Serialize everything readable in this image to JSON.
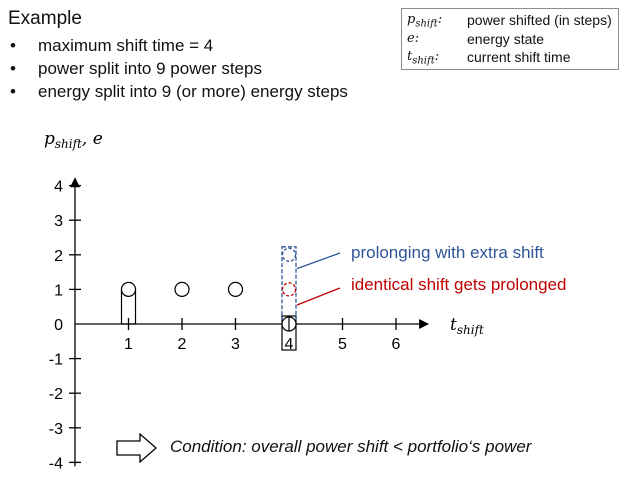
{
  "heading": "Example",
  "bullets": [
    "maximum shift time = 4",
    "power split into 9 power steps",
    "energy split into 9 (or more) energy steps"
  ],
  "legend": [
    {
      "symbol_main": "p",
      "symbol_sub": "shift",
      "symbol_tail": ":",
      "desc": "power shifted (in steps)"
    },
    {
      "symbol_main": "e",
      "symbol_sub": "",
      "symbol_tail": ":",
      "desc": "energy state"
    },
    {
      "symbol_main": "t",
      "symbol_sub": "shift",
      "symbol_tail": ":",
      "desc": "current shift time"
    }
  ],
  "chart_data": {
    "type": "scatter",
    "ylabel": {
      "main": "p",
      "sub": "shift",
      "tail": ", e"
    },
    "xlabel": {
      "main": "t",
      "sub": "shift"
    },
    "xticks": [
      1,
      2,
      3,
      4,
      5,
      6
    ],
    "yticks": [
      4,
      3,
      2,
      1,
      0,
      -1,
      -2,
      -3,
      -4
    ],
    "xlim": [
      0,
      6.6
    ],
    "ylim": [
      -4,
      4.5
    ],
    "points": [
      {
        "x": 1,
        "y": 1
      },
      {
        "x": 2,
        "y": 1
      },
      {
        "x": 3,
        "y": 1
      },
      {
        "x": 4,
        "y": 0
      }
    ],
    "dashed_points": [
      {
        "x": 4,
        "y": 2,
        "color": "#2f4f8f"
      },
      {
        "x": 4,
        "y": 1,
        "color": "#c00000"
      }
    ],
    "annotations": [
      {
        "text": "prolonging with extra shift",
        "color": "#2f5597"
      },
      {
        "text": "identical shift gets prolonged",
        "color": "#c00000"
      }
    ],
    "colors": {
      "blue": "#2f5597",
      "red": "#c00000",
      "axis": "#000000"
    }
  },
  "condition": "Condition: overall power shift < portfolio‘s power"
}
